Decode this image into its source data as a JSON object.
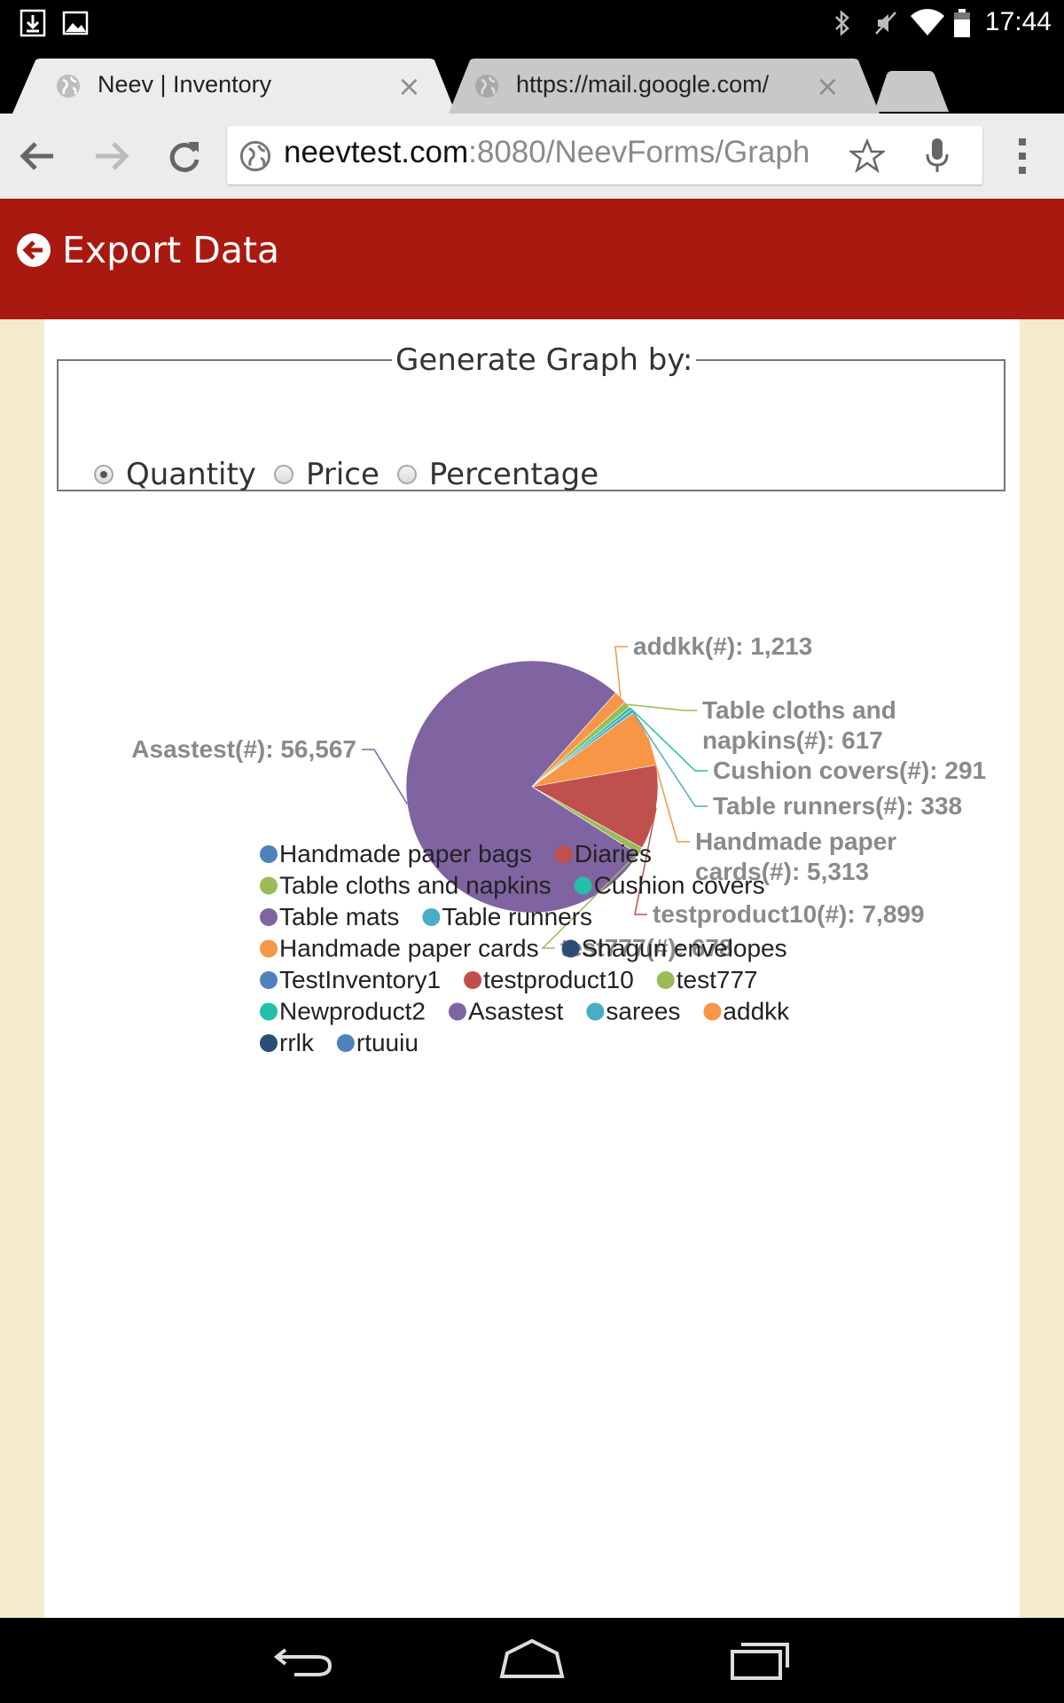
{
  "status_bar": {
    "time": "17:44"
  },
  "tabs": [
    {
      "title": "Neev | Inventory",
      "active": true
    },
    {
      "title": "https://mail.google.com/",
      "active": false
    }
  ],
  "address_bar": {
    "host": "neevtest.com",
    "path": ":8080/NeevForms/Graph"
  },
  "header": {
    "title": "Export Data"
  },
  "graph_options": {
    "legend": "Generate Graph by:",
    "options": [
      {
        "label": "Quantity",
        "checked": true
      },
      {
        "label": "Price",
        "checked": false
      },
      {
        "label": "Percentage",
        "checked": false
      }
    ]
  },
  "chart_data": {
    "type": "pie",
    "slices": [
      {
        "name": "Handmade paper bags",
        "value": 0,
        "color": "#4f81bd"
      },
      {
        "name": "Diaries",
        "value": 0,
        "color": "#c0504d"
      },
      {
        "name": "Table cloths and napkins",
        "value": 617,
        "color": "#9bbb59"
      },
      {
        "name": "Cushion covers",
        "value": 291,
        "color": "#23bfaa"
      },
      {
        "name": "Table mats",
        "value": 0,
        "color": "#8064a2"
      },
      {
        "name": "Table runners",
        "value": 338,
        "color": "#4bacc6"
      },
      {
        "name": "Handmade paper cards",
        "value": 5313,
        "color": "#f79646"
      },
      {
        "name": "Shagun envelopes",
        "value": 0,
        "color": "#2c4d75"
      },
      {
        "name": "TestInventory1",
        "value": 0,
        "color": "#4f81bd"
      },
      {
        "name": "testproduct10",
        "value": 7899,
        "color": "#c0504d"
      },
      {
        "name": "test777",
        "value": 678,
        "color": "#9bbb59"
      },
      {
        "name": "Newproduct2",
        "value": 0,
        "color": "#23bfaa"
      },
      {
        "name": "Asastest",
        "value": 56567,
        "color": "#8064a2"
      },
      {
        "name": "sarees",
        "value": 0,
        "color": "#4bacc6"
      },
      {
        "name": "addkk",
        "value": 1213,
        "color": "#f79646"
      },
      {
        "name": "rrlk",
        "value": 0,
        "color": "#2c4d75"
      },
      {
        "name": "rtuuiu",
        "value": 0,
        "color": "#4f81bd"
      }
    ],
    "data_labels": [
      {
        "series": "addkk",
        "text": "addkk(#): 1,213"
      },
      {
        "series": "Table cloths and napkins",
        "text_lines": [
          "Table cloths and",
          "napkins(#): 617"
        ]
      },
      {
        "series": "Cushion covers",
        "text": "Cushion covers(#): 291"
      },
      {
        "series": "Table runners",
        "text": "Table runners(#): 338"
      },
      {
        "series": "Handmade paper cards",
        "text_lines": [
          "Handmade paper",
          "cards(#): 5,313"
        ]
      },
      {
        "series": "testproduct10",
        "text": "testproduct10(#): 7,899"
      },
      {
        "series": "test777",
        "text": "test777(#): 678"
      },
      {
        "series": "Asastest",
        "text": "Asastest(#): 56,567"
      }
    ],
    "legend_placement": "bottom"
  }
}
